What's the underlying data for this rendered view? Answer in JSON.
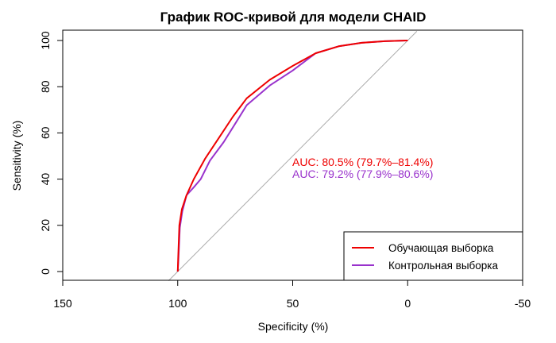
{
  "chart_data": {
    "type": "line",
    "title": "График ROC-кривой для модели CHAID",
    "xlabel": "Specificity (%)",
    "ylabel": "Sensitivity (%)",
    "xlim": [
      150,
      -50
    ],
    "ylim": [
      0,
      100
    ],
    "x_reversed": true,
    "xticks": [
      150,
      100,
      50,
      0,
      -50
    ],
    "xtick_labels": [
      "150",
      "100",
      "50",
      "0",
      "-50"
    ],
    "yticks": [
      0,
      20,
      40,
      60,
      80,
      100
    ],
    "ytick_labels": [
      "0",
      "20",
      "40",
      "60",
      "80",
      "100"
    ],
    "grid": false,
    "legend_position": "bottom-right",
    "reference_line": {
      "from": [
        100,
        0
      ],
      "to": [
        0,
        100
      ],
      "color": "#aaaaaa"
    },
    "series": [
      {
        "name": "Обучающая выборка",
        "color": "#ee0000",
        "x": [
          100,
          99.8,
          99.3,
          98.2,
          96.2,
          93.0,
          88.0,
          82.0,
          76.0,
          70.0,
          60.0,
          50.0,
          40.0,
          30.0,
          20.0,
          10.0,
          0
        ],
        "y": [
          0,
          5.5,
          20.0,
          27.0,
          33.0,
          40.0,
          49.0,
          58.0,
          67.0,
          75.0,
          83.0,
          89.0,
          94.5,
          97.5,
          99.0,
          99.7,
          100
        ]
      },
      {
        "name": "Контрольная выборка",
        "color": "#9932cc",
        "x": [
          100,
          99.7,
          99.1,
          98.0,
          96.2,
          93.0,
          90.0,
          86.0,
          80.0,
          75.0,
          70.0,
          60.0,
          50.0,
          40.0,
          30.0,
          20.0,
          10.0,
          0
        ],
        "y": [
          0,
          5.0,
          19.0,
          26.0,
          33.0,
          36.5,
          40.0,
          48.0,
          56.0,
          64.0,
          72.0,
          80.5,
          87.0,
          94.5,
          97.5,
          99.0,
          99.7,
          100
        ]
      }
    ],
    "annotations": [
      {
        "text": "AUC: 80.5% (79.7%–81.4%)",
        "color": "#ee0000"
      },
      {
        "text": "AUC: 79.2% (77.9%–80.6%)",
        "color": "#9932cc"
      }
    ]
  }
}
